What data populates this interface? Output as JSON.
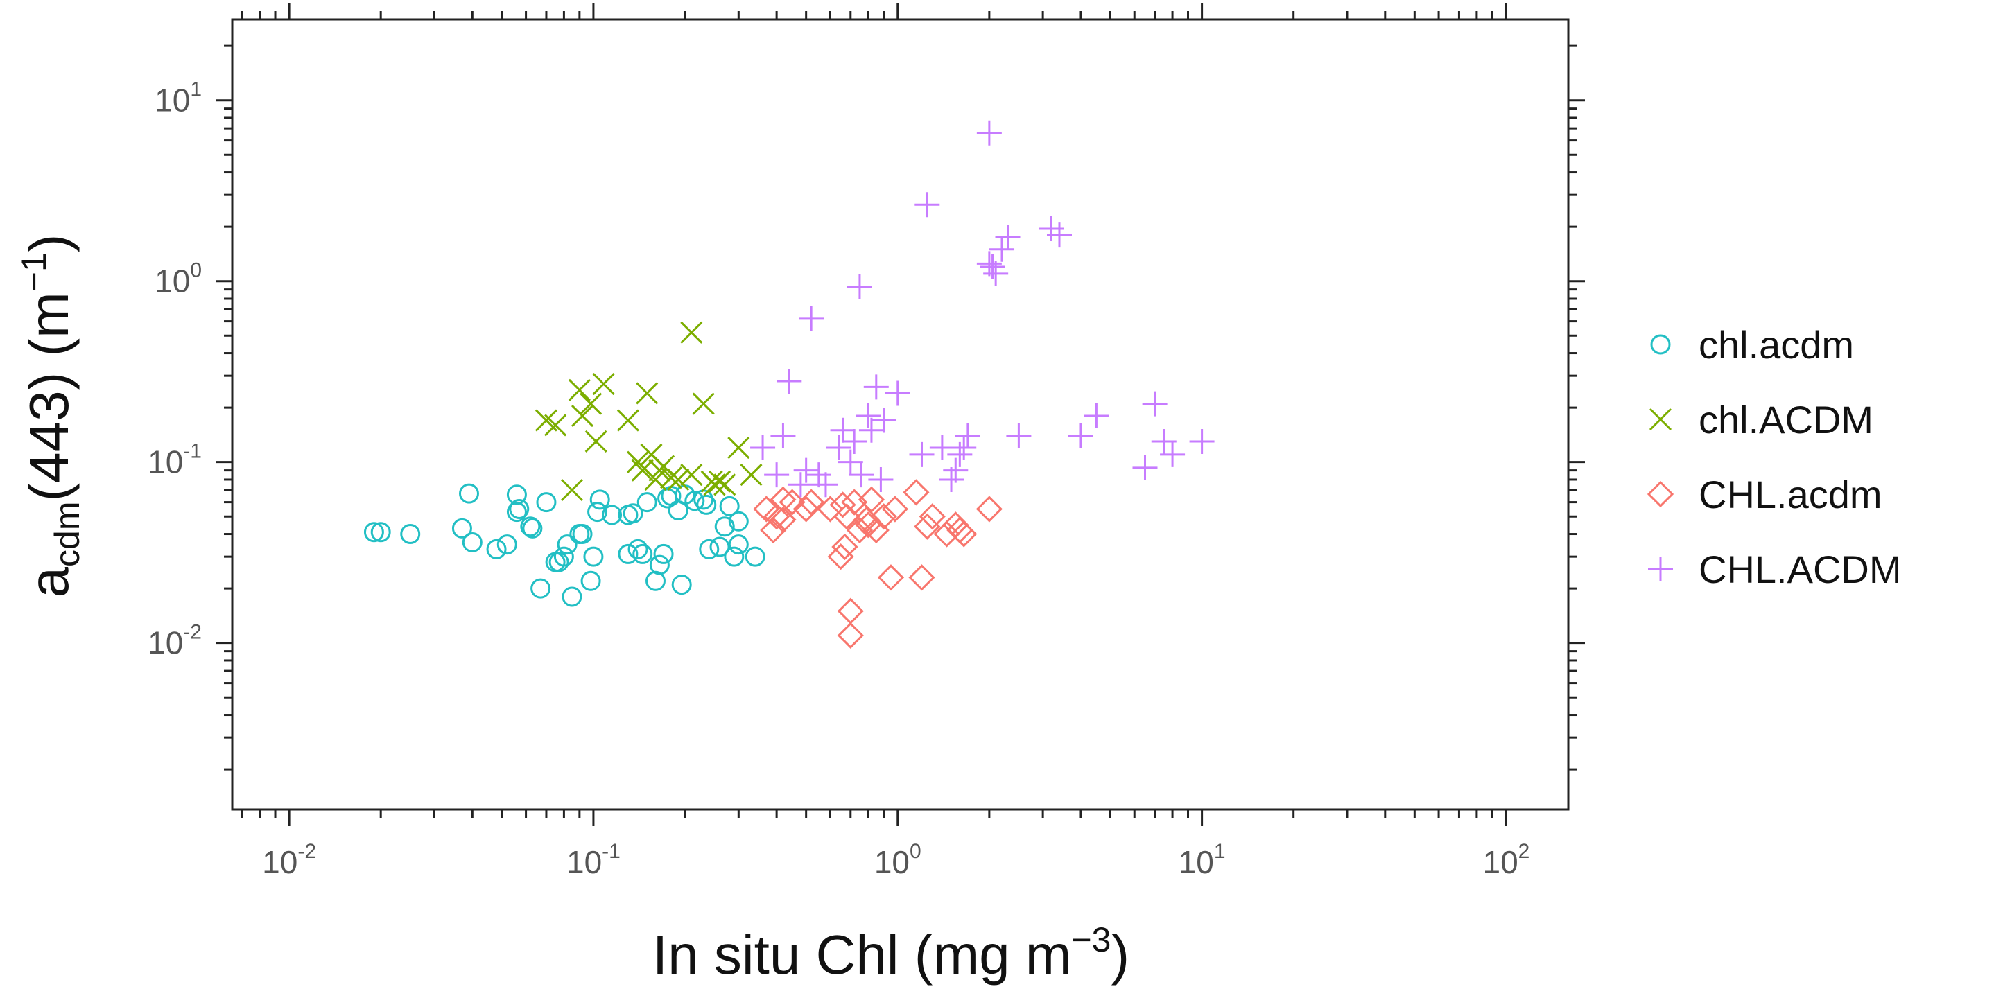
{
  "chart_data": {
    "type": "scatter",
    "x_scale": "log",
    "y_scale": "log",
    "xlim": [
      0.0065,
      160
    ],
    "ylim": [
      0.0012,
      28
    ],
    "x_ticks": [
      {
        "value": 0.01,
        "base": "10",
        "exp": "-2"
      },
      {
        "value": 0.1,
        "base": "10",
        "exp": "-1"
      },
      {
        "value": 1,
        "base": "10",
        "exp": "0"
      },
      {
        "value": 10,
        "base": "10",
        "exp": "1"
      },
      {
        "value": 100,
        "base": "10",
        "exp": "2"
      }
    ],
    "y_ticks": [
      {
        "value": 0.01,
        "base": "10",
        "exp": "-2"
      },
      {
        "value": 0.1,
        "base": "10",
        "exp": "-1"
      },
      {
        "value": 1,
        "base": "10",
        "exp": "0"
      },
      {
        "value": 10,
        "base": "10",
        "exp": "1"
      }
    ],
    "xlabel": {
      "main": "In situ Chl (mg m",
      "sup": "−3",
      "close": ")"
    },
    "ylabel": {
      "main": "a",
      "sub": "cdm",
      "mid": "(443) (m",
      "sup": "−1",
      "close": ")"
    },
    "grid": false,
    "legend_position": "right",
    "series": [
      {
        "name": "chl.acdm",
        "marker": "circle",
        "color": "#22bfc4",
        "points": [
          [
            0.019,
            0.041
          ],
          [
            0.02,
            0.041
          ],
          [
            0.025,
            0.04
          ],
          [
            0.037,
            0.043
          ],
          [
            0.039,
            0.067
          ],
          [
            0.04,
            0.036
          ],
          [
            0.048,
            0.033
          ],
          [
            0.052,
            0.035
          ],
          [
            0.056,
            0.066
          ],
          [
            0.056,
            0.053
          ],
          [
            0.057,
            0.055
          ],
          [
            0.062,
            0.044
          ],
          [
            0.063,
            0.043
          ],
          [
            0.067,
            0.02
          ],
          [
            0.07,
            0.06
          ],
          [
            0.075,
            0.028
          ],
          [
            0.077,
            0.028
          ],
          [
            0.08,
            0.03
          ],
          [
            0.082,
            0.035
          ],
          [
            0.085,
            0.018
          ],
          [
            0.09,
            0.04
          ],
          [
            0.092,
            0.04
          ],
          [
            0.098,
            0.022
          ],
          [
            0.1,
            0.03
          ],
          [
            0.103,
            0.053
          ],
          [
            0.105,
            0.062
          ],
          [
            0.115,
            0.051
          ],
          [
            0.13,
            0.031
          ],
          [
            0.135,
            0.052
          ],
          [
            0.14,
            0.033
          ],
          [
            0.145,
            0.031
          ],
          [
            0.15,
            0.06
          ],
          [
            0.16,
            0.022
          ],
          [
            0.165,
            0.027
          ],
          [
            0.17,
            0.031
          ],
          [
            0.175,
            0.063
          ],
          [
            0.18,
            0.065
          ],
          [
            0.19,
            0.054
          ],
          [
            0.195,
            0.021
          ],
          [
            0.2,
            0.066
          ],
          [
            0.215,
            0.061
          ],
          [
            0.23,
            0.062
          ],
          [
            0.24,
            0.033
          ],
          [
            0.26,
            0.034
          ],
          [
            0.27,
            0.044
          ],
          [
            0.28,
            0.057
          ],
          [
            0.29,
            0.03
          ],
          [
            0.3,
            0.047
          ],
          [
            0.34,
            0.03
          ],
          [
            0.235,
            0.058
          ],
          [
            0.13,
            0.051
          ],
          [
            0.3,
            0.035
          ]
        ]
      },
      {
        "name": "chl.ACDM",
        "marker": "x",
        "color": "#7cae00",
        "points": [
          [
            0.07,
            0.17
          ],
          [
            0.075,
            0.16
          ],
          [
            0.085,
            0.07
          ],
          [
            0.09,
            0.25
          ],
          [
            0.092,
            0.18
          ],
          [
            0.098,
            0.21
          ],
          [
            0.102,
            0.13
          ],
          [
            0.108,
            0.27
          ],
          [
            0.13,
            0.17
          ],
          [
            0.14,
            0.1
          ],
          [
            0.145,
            0.09
          ],
          [
            0.15,
            0.24
          ],
          [
            0.155,
            0.11
          ],
          [
            0.16,
            0.08
          ],
          [
            0.165,
            0.09
          ],
          [
            0.17,
            0.095
          ],
          [
            0.18,
            0.082
          ],
          [
            0.21,
            0.52
          ],
          [
            0.21,
            0.085
          ],
          [
            0.23,
            0.21
          ],
          [
            0.25,
            0.075
          ],
          [
            0.26,
            0.078
          ],
          [
            0.27,
            0.075
          ],
          [
            0.3,
            0.12
          ],
          [
            0.33,
            0.085
          ],
          [
            0.245,
            0.078
          ],
          [
            0.19,
            0.08
          ]
        ]
      },
      {
        "name": "CHL.acdm",
        "marker": "diamond",
        "color": "#f8766d",
        "points": [
          [
            0.37,
            0.055
          ],
          [
            0.39,
            0.042
          ],
          [
            0.4,
            0.05
          ],
          [
            0.42,
            0.062
          ],
          [
            0.45,
            0.06
          ],
          [
            0.5,
            0.055
          ],
          [
            0.52,
            0.06
          ],
          [
            0.6,
            0.055
          ],
          [
            0.65,
            0.03
          ],
          [
            0.67,
            0.034
          ],
          [
            0.68,
            0.05
          ],
          [
            0.7,
            0.015
          ],
          [
            0.7,
            0.011
          ],
          [
            0.72,
            0.06
          ],
          [
            0.75,
            0.042
          ],
          [
            0.8,
            0.045
          ],
          [
            0.82,
            0.062
          ],
          [
            0.85,
            0.042
          ],
          [
            0.9,
            0.05
          ],
          [
            0.95,
            0.023
          ],
          [
            0.98,
            0.055
          ],
          [
            1.15,
            0.068
          ],
          [
            1.2,
            0.023
          ],
          [
            1.25,
            0.044
          ],
          [
            1.3,
            0.05
          ],
          [
            1.45,
            0.04
          ],
          [
            1.55,
            0.045
          ],
          [
            1.6,
            0.042
          ],
          [
            1.65,
            0.04
          ],
          [
            2.0,
            0.055
          ],
          [
            0.66,
            0.058
          ],
          [
            0.79,
            0.048
          ],
          [
            0.42,
            0.048
          ]
        ]
      },
      {
        "name": "CHL.ACDM",
        "marker": "plus",
        "color": "#c77cff",
        "points": [
          [
            0.36,
            0.12
          ],
          [
            0.4,
            0.085
          ],
          [
            0.42,
            0.14
          ],
          [
            0.44,
            0.28
          ],
          [
            0.48,
            0.075
          ],
          [
            0.5,
            0.09
          ],
          [
            0.52,
            0.62
          ],
          [
            0.55,
            0.085
          ],
          [
            0.58,
            0.075
          ],
          [
            0.64,
            0.12
          ],
          [
            0.66,
            0.15
          ],
          [
            0.7,
            0.1
          ],
          [
            0.72,
            0.13
          ],
          [
            0.75,
            0.93
          ],
          [
            0.76,
            0.085
          ],
          [
            0.8,
            0.18
          ],
          [
            0.82,
            0.15
          ],
          [
            0.85,
            0.26
          ],
          [
            0.88,
            0.08
          ],
          [
            0.9,
            0.17
          ],
          [
            1.0,
            0.24
          ],
          [
            1.2,
            0.11
          ],
          [
            1.25,
            2.65
          ],
          [
            1.4,
            0.12
          ],
          [
            1.5,
            0.08
          ],
          [
            1.55,
            0.09
          ],
          [
            1.6,
            0.11
          ],
          [
            1.65,
            0.12
          ],
          [
            1.7,
            0.14
          ],
          [
            2.0,
            6.6
          ],
          [
            2.0,
            1.25
          ],
          [
            2.05,
            1.2
          ],
          [
            2.1,
            1.1
          ],
          [
            2.2,
            1.5
          ],
          [
            2.3,
            1.75
          ],
          [
            2.5,
            0.14
          ],
          [
            3.2,
            1.95
          ],
          [
            3.4,
            1.8
          ],
          [
            4.0,
            0.14
          ],
          [
            4.5,
            0.18
          ],
          [
            6.5,
            0.093
          ],
          [
            7.0,
            0.21
          ],
          [
            7.5,
            0.13
          ],
          [
            8.0,
            0.11
          ],
          [
            10.0,
            0.13
          ]
        ]
      }
    ]
  }
}
